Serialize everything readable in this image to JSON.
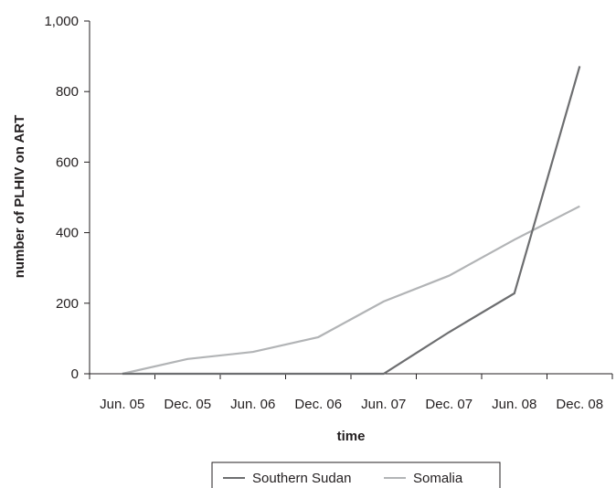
{
  "chart_data": {
    "type": "line",
    "categories": [
      "Jun. 05",
      "Dec. 05",
      "Jun. 06",
      "Dec. 06",
      "Jun. 07",
      "Dec. 07",
      "Jun. 08",
      "Dec. 08"
    ],
    "series": [
      {
        "name": "Southern Sudan",
        "color": "#6d6e70",
        "values": [
          0,
          0,
          0,
          0,
          0,
          118,
          228,
          872
        ]
      },
      {
        "name": "Somalia",
        "color": "#b2b4b6",
        "values": [
          0,
          42,
          62,
          104,
          205,
          278,
          380,
          475
        ]
      }
    ],
    "yticks": [
      "1,000",
      "800",
      "600",
      "400",
      "200",
      "0"
    ],
    "xlabel": "time",
    "ylabel": "number of PLHIV on ART",
    "ylim": [
      0,
      1000
    ],
    "grid": false,
    "legend_position": "bottom"
  }
}
